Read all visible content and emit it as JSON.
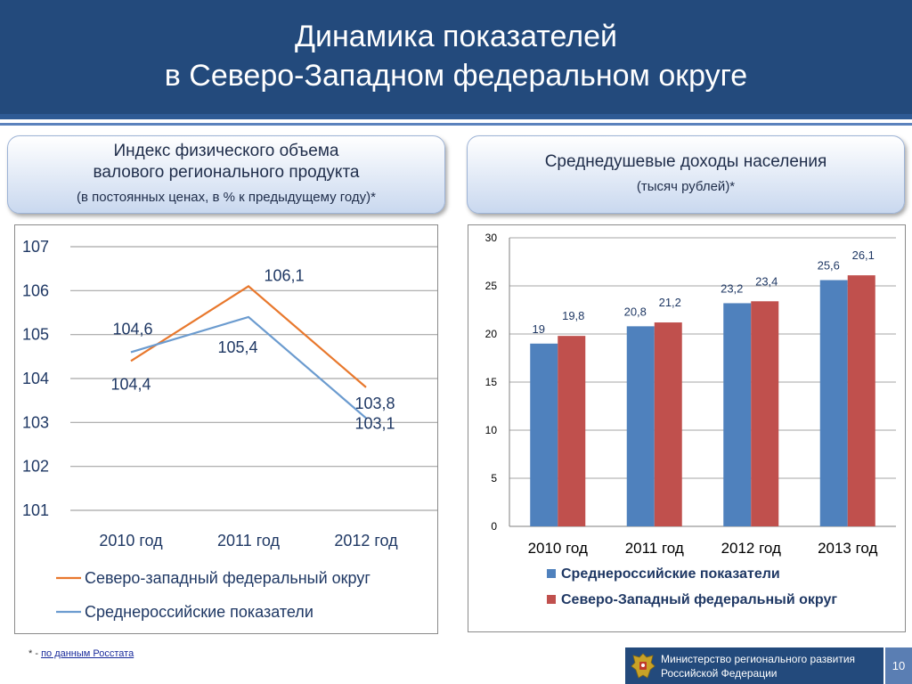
{
  "header": {
    "title_line1": "Динамика показателей",
    "title_line2": "в Северо-Западном федеральном округе"
  },
  "left_caption": {
    "line1": "Индекс физического объема",
    "line2": "валового регионального продукта",
    "line3": "(в постоянных ценах, в % к предыдущему году)*"
  },
  "right_caption": {
    "line1": "Среднедушевые доходы населения",
    "line2": "(тысяч рублей)*"
  },
  "colors": {
    "header_bg": "#234a7c",
    "series_orange": "#e8782d",
    "series_lightblue": "#6b9bcf",
    "bar_blue": "#4f81bd",
    "bar_red": "#c0504d"
  },
  "chart_data": [
    {
      "type": "line",
      "categories": [
        "2010 год",
        "2011 год",
        "2012 год"
      ],
      "series": [
        {
          "name": "Северо-западный  федеральный  округ",
          "values": [
            104.4,
            106.1,
            103.8
          ],
          "labels": [
            "104,4",
            "106,1",
            "103,8"
          ],
          "color": "#e8782d"
        },
        {
          "name": "Среднероссийские  показатели",
          "values": [
            104.6,
            105.4,
            103.1
          ],
          "labels": [
            "104,6",
            "105,4",
            "103,1"
          ],
          "color": "#6b9bcf"
        }
      ],
      "ylim": [
        101,
        107
      ],
      "yticks": [
        "101",
        "102",
        "103",
        "104",
        "105",
        "106",
        "107"
      ],
      "grid": true,
      "legend_position": "bottom"
    },
    {
      "type": "bar",
      "categories": [
        "2010 год",
        "2011 год",
        "2012 год",
        "2013 год"
      ],
      "series": [
        {
          "name": "Среднероссийские показатели",
          "values": [
            19,
            20.8,
            23.2,
            25.6
          ],
          "labels": [
            "19",
            "20,8",
            "23,2",
            "25,6"
          ],
          "color": "#4f81bd"
        },
        {
          "name": "Северо-Западный федеральный округ",
          "values": [
            19.8,
            21.2,
            23.4,
            26.1
          ],
          "labels": [
            "19,8",
            "21,2",
            "23,4",
            "26,1"
          ],
          "color": "#c0504d"
        }
      ],
      "ylim": [
        0,
        30
      ],
      "yticks": [
        "0",
        "5",
        "10",
        "15",
        "20",
        "25",
        "30"
      ],
      "grid": true,
      "legend_position": "bottom"
    }
  ],
  "footnote": {
    "prefix": "* - ",
    "link_text": "по данным Росстата"
  },
  "ministry": {
    "line1": "Министерство регионального развития",
    "line2": "Российской Федерации"
  },
  "page_number": "10"
}
